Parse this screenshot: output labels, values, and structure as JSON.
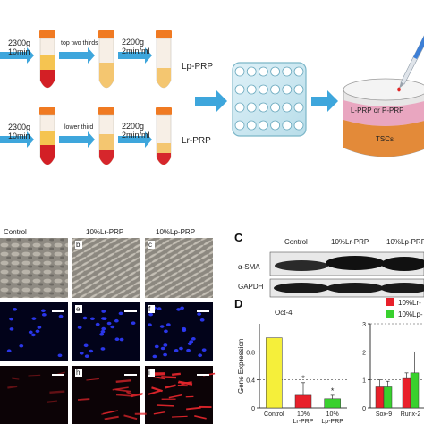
{
  "panel_a": {
    "row1": {
      "spin1": [
        "2300g",
        "10min"
      ],
      "step": "top two thirds",
      "spin2": [
        "2200g",
        "2min/ml"
      ],
      "product": "Lp-PRP"
    },
    "row2": {
      "spin1": [
        "2300g",
        "10min"
      ],
      "step": "lower third",
      "spin2": [
        "2200g",
        "2min/ml"
      ],
      "product": "Lr-PRP"
    },
    "dish_layers": [
      "L-PRP or P-PRP",
      "TSCs"
    ]
  },
  "panel_b": {
    "columns": [
      "Control",
      "10%Lr-PRP",
      "10%Lp-PRP"
    ],
    "tile_letters": [
      "b",
      "c",
      "e",
      "f",
      "h",
      "i"
    ]
  },
  "panel_c": {
    "letter": "C",
    "columns": [
      "Control",
      "10%Lr-PRP",
      "10%Lp-PRP"
    ],
    "bands": [
      "α-SMA",
      "GAPDH"
    ]
  },
  "panel_d": {
    "letter": "D",
    "legend": [
      "10%Lr-",
      "10%Lp-"
    ],
    "colors": {
      "control": "#f5ef3a",
      "lr": "#e8202a",
      "lp": "#39d12e"
    }
  },
  "chart_data": [
    {
      "type": "bar",
      "title": "Oct-4",
      "ylabel": "Gene Expression",
      "categories": [
        "Control",
        "10% Lr-PRP",
        "10% Lp-PRP"
      ],
      "values": [
        1.0,
        0.18,
        0.13
      ],
      "errors": [
        0,
        0.18,
        0.05
      ],
      "ylim": [
        0,
        1.2
      ],
      "yticks": [
        "0",
        "0.4",
        "0.8"
      ],
      "significance": [
        "",
        "*",
        "*"
      ]
    },
    {
      "type": "bar",
      "categories": [
        "Sox-9",
        "Runx-2"
      ],
      "series": [
        {
          "name": "10%Lr-",
          "values": [
            0.75,
            1.05
          ]
        },
        {
          "name": "10%Lp-",
          "values": [
            0.75,
            1.25
          ]
        }
      ],
      "errors": [
        [
          0.25,
          0.2
        ],
        [
          0.2,
          0.75
        ]
      ],
      "ylim": [
        0,
        3
      ],
      "yticks": [
        "0",
        "1",
        "2",
        "3"
      ]
    }
  ]
}
